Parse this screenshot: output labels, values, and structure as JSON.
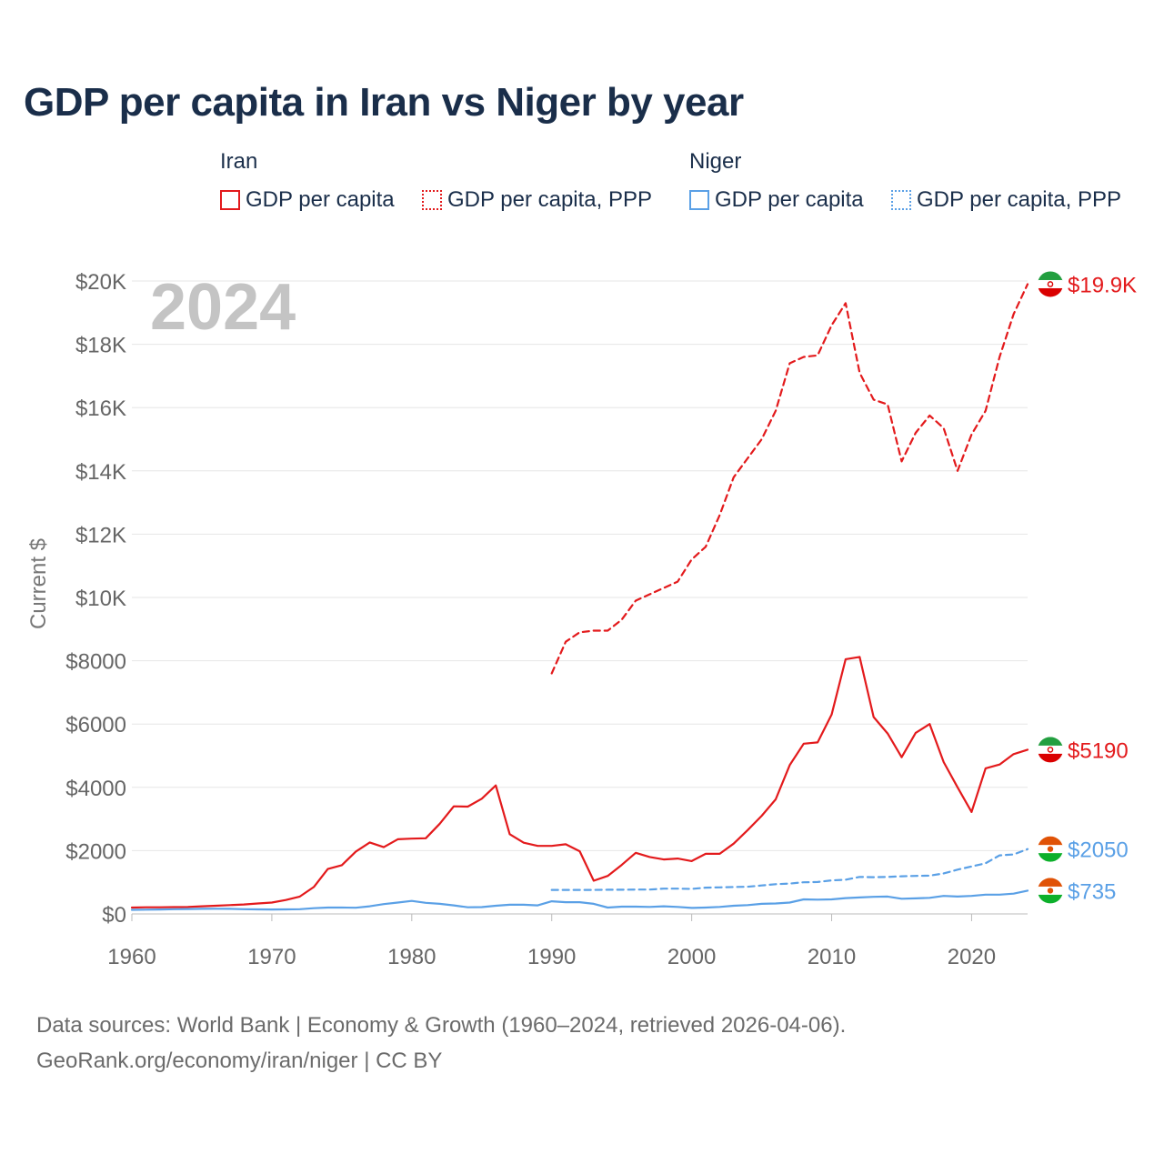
{
  "title": "GDP per capita in Iran vs Niger by year",
  "legend": {
    "groups": [
      {
        "country": "Iran",
        "items": [
          {
            "label": "GDP per capita",
            "color": "#e31a1c",
            "style": "solid"
          },
          {
            "label": "GDP per capita, PPP",
            "color": "#e31a1c",
            "style": "dotted"
          }
        ]
      },
      {
        "country": "Niger",
        "items": [
          {
            "label": "GDP per capita",
            "color": "#5aa0e6",
            "style": "solid"
          },
          {
            "label": "GDP per capita, PPP",
            "color": "#5aa0e6",
            "style": "dotted"
          }
        ]
      }
    ]
  },
  "year_label": "2024",
  "source": {
    "line1": "Data sources: World Bank | Economy & Growth (1960–2024, retrieved 2026-04-06).",
    "line2": "GeoRank.org/economy/iran/niger | CC BY"
  },
  "chart_data": {
    "type": "line",
    "title": "GDP per capita in Iran vs Niger by year",
    "xlabel": "",
    "ylabel": "Current $",
    "xlim": [
      1960,
      2024
    ],
    "ylim": [
      0,
      20000
    ],
    "x_ticks": [
      1960,
      1970,
      1980,
      1990,
      2000,
      2010,
      2020
    ],
    "x_tick_labels": [
      "1960",
      "1970",
      "1980",
      "1990",
      "2000",
      "2010",
      "2020"
    ],
    "y_ticks": [
      0,
      2000,
      4000,
      6000,
      8000,
      10000,
      12000,
      14000,
      16000,
      18000,
      20000
    ],
    "y_tick_labels": [
      "$0",
      "$2000",
      "$4000",
      "$6000",
      "$8000",
      "$10K",
      "$12K",
      "$14K",
      "$16K",
      "$18K",
      "$20K"
    ],
    "grid": true,
    "series": [
      {
        "name": "Iran GDP per capita, PPP",
        "country": "Iran",
        "color": "#e31a1c",
        "dash": "dashed",
        "end_label": "$19.9K",
        "end_flag": "iran",
        "x": [
          1990,
          1991,
          1992,
          1993,
          1994,
          1995,
          1996,
          1997,
          1998,
          1999,
          2000,
          2001,
          2002,
          2003,
          2004,
          2005,
          2006,
          2007,
          2008,
          2009,
          2010,
          2011,
          2012,
          2013,
          2014,
          2015,
          2016,
          2017,
          2018,
          2019,
          2020,
          2021,
          2022,
          2023,
          2024
        ],
        "values": [
          7600,
          8600,
          8900,
          8950,
          8950,
          9300,
          9900,
          10100,
          10300,
          10500,
          11200,
          11600,
          12600,
          13800,
          14400,
          15000,
          15900,
          17400,
          17600,
          17650,
          18600,
          19300,
          17100,
          16250,
          16100,
          14300,
          15200,
          15750,
          15350,
          14000,
          15150,
          15900,
          17600,
          18950,
          19900
        ]
      },
      {
        "name": "Iran GDP per capita",
        "country": "Iran",
        "color": "#e31a1c",
        "dash": "solid",
        "end_label": "$5190",
        "end_flag": "iran",
        "x": [
          1960,
          1961,
          1962,
          1963,
          1964,
          1965,
          1966,
          1967,
          1968,
          1969,
          1970,
          1971,
          1972,
          1973,
          1974,
          1975,
          1976,
          1977,
          1978,
          1979,
          1980,
          1981,
          1982,
          1983,
          1984,
          1985,
          1986,
          1987,
          1988,
          1989,
          1990,
          1991,
          1992,
          1993,
          1994,
          1995,
          1996,
          1997,
          1998,
          1999,
          2000,
          2001,
          2002,
          2003,
          2004,
          2005,
          2006,
          2007,
          2008,
          2009,
          2010,
          2011,
          2012,
          2013,
          2014,
          2015,
          2016,
          2017,
          2018,
          2019,
          2020,
          2021,
          2022,
          2023,
          2024
        ],
        "values": [
          200,
          210,
          210,
          215,
          220,
          240,
          260,
          280,
          300,
          330,
          360,
          440,
          550,
          850,
          1420,
          1540,
          1970,
          2260,
          2110,
          2360,
          2380,
          2390,
          2850,
          3400,
          3390,
          3640,
          4060,
          2520,
          2250,
          2150,
          2150,
          2200,
          1980,
          1050,
          1200,
          1550,
          1930,
          1800,
          1720,
          1750,
          1670,
          1900,
          1900,
          2220,
          2650,
          3100,
          3620,
          4700,
          5380,
          5420,
          6300,
          8050,
          8120,
          6220,
          5700,
          4950,
          5720,
          6000,
          4800,
          4000,
          3220,
          4600,
          4720,
          5050,
          5190
        ]
      },
      {
        "name": "Niger GDP per capita, PPP",
        "country": "Niger",
        "color": "#5aa0e6",
        "dash": "dashed",
        "end_label": "$2050",
        "end_flag": "niger",
        "x": [
          1990,
          1991,
          1992,
          1993,
          1994,
          1995,
          1996,
          1997,
          1998,
          1999,
          2000,
          2001,
          2002,
          2003,
          2004,
          2005,
          2006,
          2007,
          2008,
          2009,
          2010,
          2011,
          2012,
          2013,
          2014,
          2015,
          2016,
          2017,
          2018,
          2019,
          2020,
          2021,
          2022,
          2023,
          2024
        ],
        "values": [
          760,
          760,
          760,
          760,
          765,
          765,
          770,
          770,
          800,
          800,
          790,
          830,
          840,
          850,
          860,
          900,
          940,
          960,
          1000,
          1010,
          1060,
          1080,
          1170,
          1160,
          1170,
          1190,
          1200,
          1210,
          1280,
          1400,
          1500,
          1600,
          1850,
          1880,
          2050
        ]
      },
      {
        "name": "Niger GDP per capita",
        "country": "Niger",
        "color": "#5aa0e6",
        "dash": "solid",
        "end_label": "$735",
        "end_flag": "niger",
        "x": [
          1960,
          1961,
          1962,
          1963,
          1964,
          1965,
          1966,
          1967,
          1968,
          1969,
          1970,
          1971,
          1972,
          1973,
          1974,
          1975,
          1976,
          1977,
          1978,
          1979,
          1980,
          1981,
          1982,
          1983,
          1984,
          1985,
          1986,
          1987,
          1988,
          1989,
          1990,
          1991,
          1992,
          1993,
          1994,
          1995,
          1996,
          1997,
          1998,
          1999,
          2000,
          2001,
          2002,
          2003,
          2004,
          2005,
          2006,
          2007,
          2008,
          2009,
          2010,
          2011,
          2012,
          2013,
          2014,
          2015,
          2016,
          2017,
          2018,
          2019,
          2020,
          2021,
          2022,
          2023,
          2024
        ],
        "values": [
          130,
          135,
          140,
          150,
          155,
          160,
          165,
          160,
          150,
          145,
          140,
          145,
          150,
          180,
          200,
          200,
          195,
          240,
          310,
          360,
          410,
          350,
          320,
          270,
          210,
          215,
          260,
          290,
          290,
          270,
          400,
          370,
          370,
          320,
          200,
          230,
          230,
          220,
          240,
          220,
          190,
          200,
          220,
          260,
          280,
          320,
          330,
          360,
          460,
          450,
          460,
          500,
          520,
          540,
          550,
          480,
          490,
          510,
          570,
          550,
          570,
          610,
          610,
          640,
          735
        ]
      }
    ]
  }
}
